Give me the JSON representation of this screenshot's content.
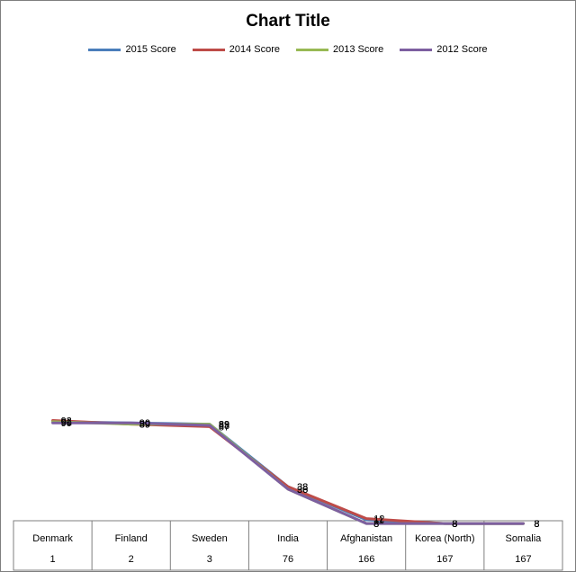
{
  "chart_data": {
    "type": "line",
    "title": "Chart Title",
    "categories": [
      "Denmark",
      "Finland",
      "Sweden",
      "India",
      "Afghanistan",
      "Korea (North)",
      "Somalia"
    ],
    "category_ranks": [
      "1",
      "2",
      "3",
      "76",
      "166",
      "167",
      "167"
    ],
    "series": [
      {
        "name": "2015 Score",
        "color": "#4a7ebb",
        "values": [
          91,
          90,
          89,
          38,
          11,
          8,
          8
        ]
      },
      {
        "name": "2014 Score",
        "color": "#be4b48",
        "values": [
          92,
          89,
          87,
          38,
          12,
          8,
          8
        ]
      },
      {
        "name": "2013 Score",
        "color": "#98b954",
        "values": [
          91,
          89,
          89,
          36,
          8,
          8,
          8
        ]
      },
      {
        "name": "2012 Score",
        "color": "#7d5fa0",
        "values": [
          90,
          90,
          88,
          36,
          8,
          8,
          8
        ]
      }
    ],
    "legend": "top",
    "grid": false
  }
}
